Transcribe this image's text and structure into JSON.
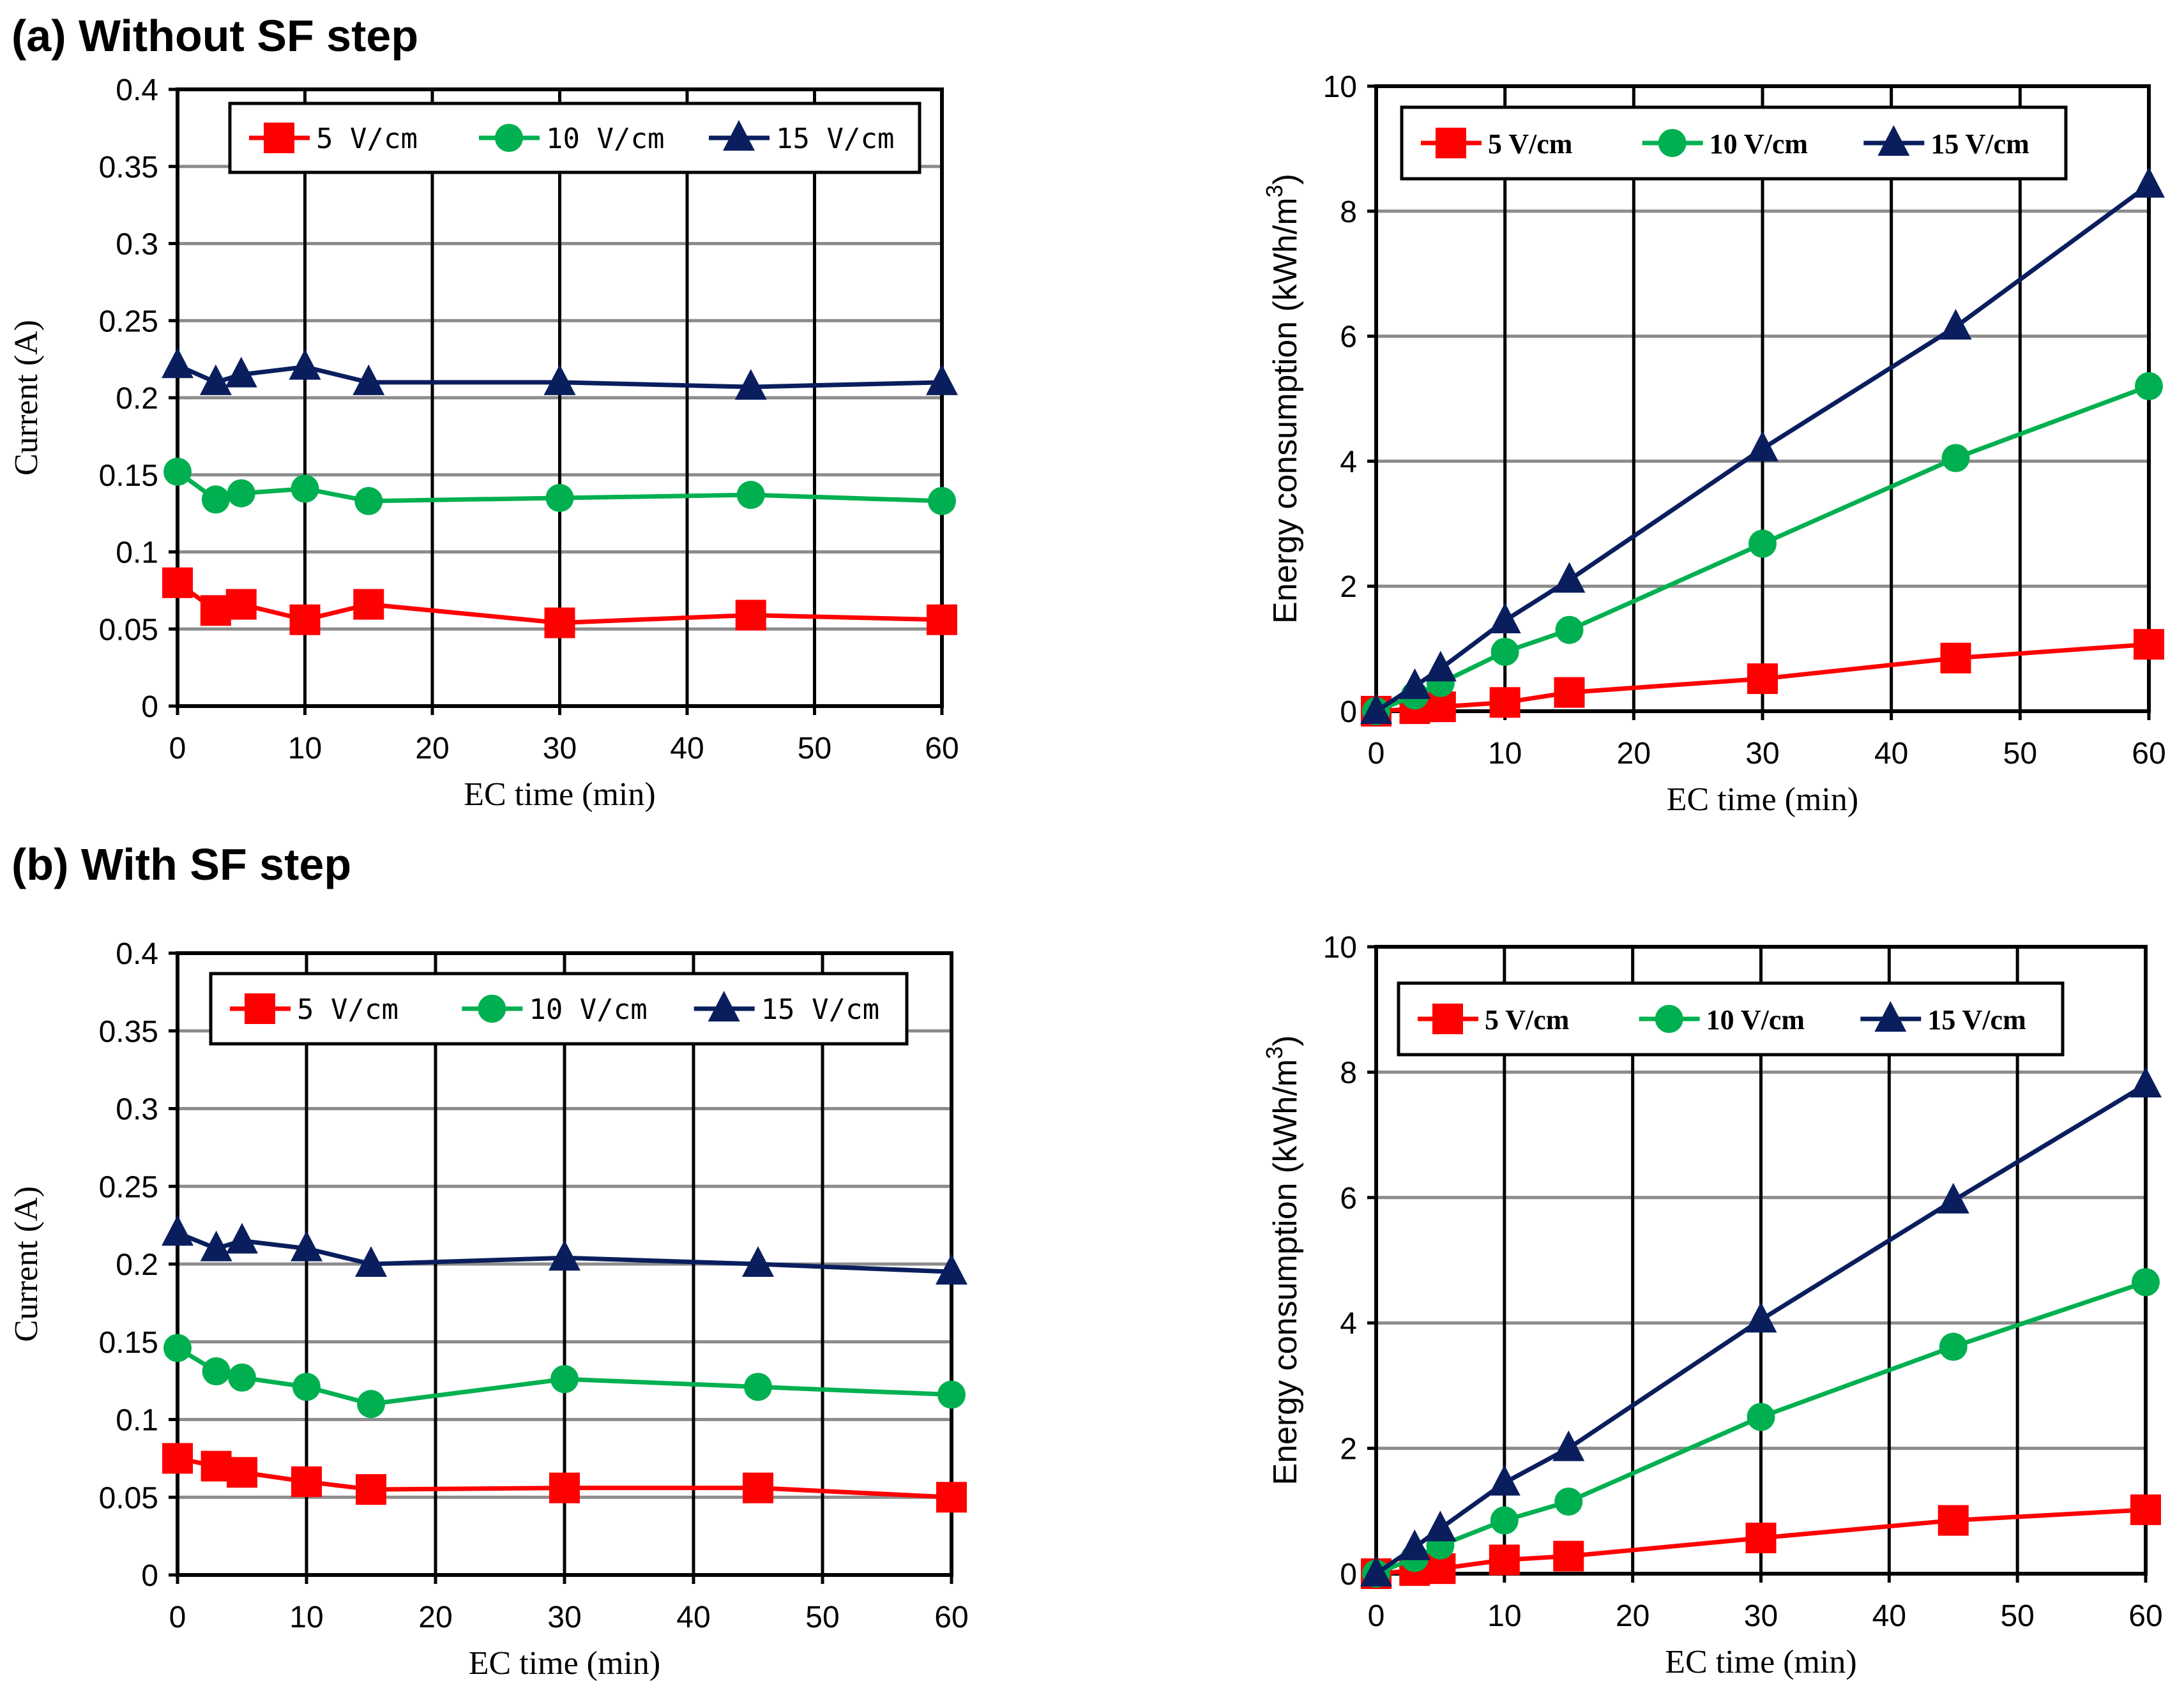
{
  "panels": {
    "a_label": "(a) Without SF step",
    "b_label": "(b) With SF step"
  },
  "colors": {
    "s5": "#ff0000",
    "s10": "#00b050",
    "s15": "#0a1e5e"
  },
  "chart_data": [
    {
      "id": "a-current",
      "type": "line",
      "xlabel": "EC time (min)",
      "ylabel": "Current (A)",
      "xlim": [
        0,
        60
      ],
      "ylim": [
        0,
        0.4
      ],
      "xticks": [
        0,
        10,
        20,
        30,
        40,
        50,
        60
      ],
      "yticks": [
        0,
        0.05,
        0.1,
        0.15,
        0.2,
        0.25,
        0.3,
        0.35,
        0.4
      ],
      "ytick_labels": [
        "0",
        "0.05",
        "0.1",
        "0.15",
        "0.2",
        "0.25",
        "0.3",
        "0.35",
        "0.4"
      ],
      "legend_style": "mono",
      "x": [
        0,
        3,
        5,
        10,
        15,
        30,
        45,
        60
      ],
      "series": [
        {
          "name": "5 V/cm",
          "color": "#ff0000",
          "marker": "square",
          "values": [
            0.08,
            0.062,
            0.066,
            0.056,
            0.066,
            0.054,
            0.059,
            0.056
          ]
        },
        {
          "name": "10 V/cm",
          "color": "#00b050",
          "marker": "circle",
          "values": [
            0.152,
            0.134,
            0.138,
            0.141,
            0.133,
            0.135,
            0.137,
            0.133
          ]
        },
        {
          "name": "15 V/cm",
          "color": "#0a1e5e",
          "marker": "triangle",
          "values": [
            0.221,
            0.21,
            0.215,
            0.22,
            0.21,
            0.21,
            0.207,
            0.21
          ]
        }
      ]
    },
    {
      "id": "a-energy",
      "type": "line",
      "xlabel": "EC time (min)",
      "ylabel": "Energy consumption  (kWh/m",
      "ylabel_sup": "3",
      "ylabel_close": ")",
      "xlim": [
        0,
        60
      ],
      "ylim": [
        0,
        10
      ],
      "xticks": [
        0,
        10,
        20,
        30,
        40,
        50,
        60
      ],
      "yticks": [
        0,
        2,
        4,
        6,
        8,
        10
      ],
      "ytick_labels": [
        "0",
        "2",
        "4",
        "6",
        "8",
        "10"
      ],
      "legend_style": "serif",
      "x": [
        0,
        3,
        5,
        10,
        15,
        30,
        45,
        60
      ],
      "series": [
        {
          "name": "5 V/cm",
          "color": "#ff0000",
          "marker": "square",
          "values": [
            0,
            0.04,
            0.07,
            0.14,
            0.3,
            0.52,
            0.85,
            1.07
          ]
        },
        {
          "name": "10 V/cm",
          "color": "#00b050",
          "marker": "circle",
          "values": [
            0,
            0.25,
            0.45,
            0.95,
            1.3,
            2.68,
            4.05,
            5.2
          ]
        },
        {
          "name": "15 V/cm",
          "color": "#0a1e5e",
          "marker": "triangle",
          "values": [
            0,
            0.4,
            0.68,
            1.45,
            2.1,
            4.2,
            6.15,
            8.42
          ]
        }
      ]
    },
    {
      "id": "b-current",
      "type": "line",
      "xlabel": "EC time (min)",
      "ylabel": "Current (A)",
      "xlim": [
        0,
        60
      ],
      "ylim": [
        0,
        0.4
      ],
      "xticks": [
        0,
        10,
        20,
        30,
        40,
        50,
        60
      ],
      "yticks": [
        0,
        0.05,
        0.1,
        0.15,
        0.2,
        0.25,
        0.3,
        0.35,
        0.4
      ],
      "ytick_labels": [
        "0",
        "0.05",
        "0.1",
        "0.15",
        "0.2",
        "0.25",
        "0.3",
        "0.35",
        "0.4"
      ],
      "legend_style": "mono",
      "x": [
        0,
        3,
        5,
        10,
        15,
        30,
        45,
        60
      ],
      "series": [
        {
          "name": "5 V/cm",
          "color": "#ff0000",
          "marker": "square",
          "values": [
            0.075,
            0.07,
            0.066,
            0.06,
            0.055,
            0.056,
            0.056,
            0.05
          ]
        },
        {
          "name": "10 V/cm",
          "color": "#00b050",
          "marker": "circle",
          "values": [
            0.146,
            0.131,
            0.127,
            0.121,
            0.11,
            0.126,
            0.121,
            0.116
          ]
        },
        {
          "name": "15 V/cm",
          "color": "#0a1e5e",
          "marker": "triangle",
          "values": [
            0.22,
            0.21,
            0.215,
            0.21,
            0.2,
            0.204,
            0.2,
            0.195
          ]
        }
      ]
    },
    {
      "id": "b-energy",
      "type": "line",
      "xlabel": "EC time (min)",
      "ylabel": "Energy consumption (kWh/m",
      "ylabel_sup": "3",
      "ylabel_close": ")",
      "xlim": [
        0,
        60
      ],
      "ylim": [
        0,
        10
      ],
      "xticks": [
        0,
        10,
        20,
        30,
        40,
        50,
        60
      ],
      "yticks": [
        0,
        2,
        4,
        6,
        8,
        10
      ],
      "ytick_labels": [
        "0",
        "2",
        "4",
        "6",
        "8",
        "10"
      ],
      "legend_style": "serif",
      "x": [
        0,
        3,
        5,
        10,
        15,
        30,
        45,
        60
      ],
      "series": [
        {
          "name": "5 V/cm",
          "color": "#ff0000",
          "marker": "square",
          "values": [
            0,
            0.05,
            0.08,
            0.22,
            0.28,
            0.57,
            0.85,
            1.02
          ]
        },
        {
          "name": "10 V/cm",
          "color": "#00b050",
          "marker": "circle",
          "values": [
            0,
            0.25,
            0.45,
            0.85,
            1.15,
            2.5,
            3.62,
            4.65
          ]
        },
        {
          "name": "15 V/cm",
          "color": "#0a1e5e",
          "marker": "triangle",
          "values": [
            0,
            0.42,
            0.72,
            1.45,
            2.0,
            4.05,
            5.95,
            7.8
          ]
        }
      ]
    }
  ]
}
